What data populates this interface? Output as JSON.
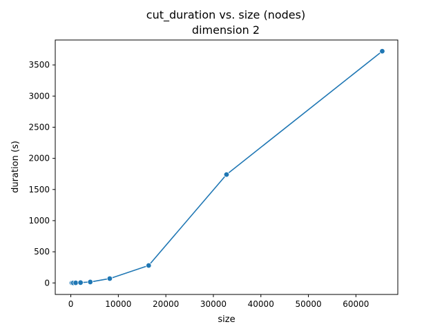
{
  "chart_data": {
    "type": "line",
    "title": "cut_duration vs. size (nodes)",
    "subtitle": "dimension 2",
    "xlabel": "size",
    "ylabel": "duration (s)",
    "xlim": [
      -3276,
      68812
    ],
    "ylim": [
      -185,
      3900
    ],
    "x_ticks": [
      0,
      10000,
      20000,
      30000,
      40000,
      50000,
      60000
    ],
    "y_ticks": [
      0,
      500,
      1000,
      1500,
      2000,
      2500,
      3000,
      3500
    ],
    "grid": false,
    "marker": "circle",
    "color": "#1f77b4",
    "series": [
      {
        "x": [
          128,
          256,
          512,
          1024,
          2048,
          4096,
          8192,
          16384,
          32768,
          65536
        ],
        "y": [
          0.1,
          0.3,
          0.8,
          2,
          5,
          15,
          70,
          280,
          1740,
          3720
        ]
      }
    ]
  }
}
